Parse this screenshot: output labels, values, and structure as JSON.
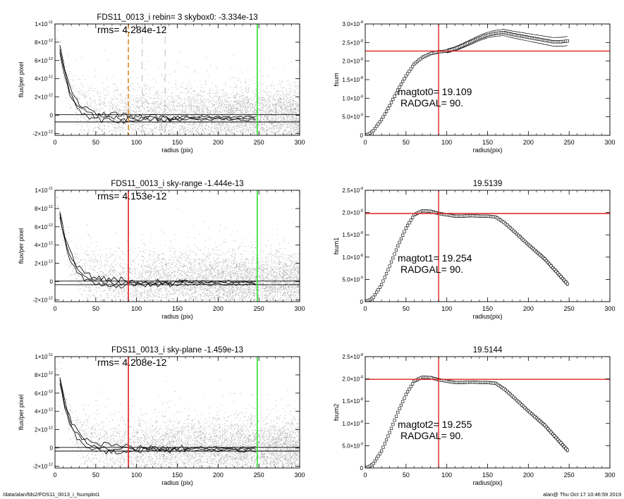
{
  "footer": {
    "path": "/data/alan/fds2/FDS11_0013_i_fsumplot1",
    "stamp": "alan@  Thu Oct 17 10:46:59 2019"
  },
  "colors": {
    "points": "#a8a8a8",
    "profile": "#000000",
    "red": "#e02020",
    "green": "#2adf2a",
    "orange": "#e08a1e",
    "grey_dash": "#b0b0b0"
  },
  "chart_data": [
    {
      "type": "scatter",
      "title": "FDS11_0013_i rebin= 3    skybox0: -3.334e-13",
      "annotation": "rms= 4.284e-12",
      "xlabel": "radius (pix)",
      "ylabel": "flux/per pixel",
      "xlim": [
        0,
        300
      ],
      "ylim": [
        -2.2e-12,
        1e-11
      ],
      "xticks": [
        "0",
        "50",
        "100",
        "150",
        "200",
        "250",
        "300"
      ],
      "yticks": [
        {
          "v": -2e-12,
          "mant": "-2×10",
          "exp": "-12"
        },
        {
          "v": 0,
          "mant": "0",
          "exp": ""
        },
        {
          "v": 2e-12,
          "mant": "2×10",
          "exp": "-12"
        },
        {
          "v": 4e-12,
          "mant": "4×10",
          "exp": "-12"
        },
        {
          "v": 6e-12,
          "mant": "6×10",
          "exp": "-12"
        },
        {
          "v": 8e-12,
          "mant": "8×10",
          "exp": "-12"
        },
        {
          "v": 1e-11,
          "mant": "1×10",
          "exp": "-11"
        }
      ],
      "profile_end": 248,
      "sky_level": -3.334e-13,
      "sky_band": 4e-13,
      "vlines": [
        {
          "x": 90,
          "color": "#e08a1e",
          "style": "dash"
        },
        {
          "x": 107,
          "color": "#b0b0b0",
          "style": "dash"
        },
        {
          "x": 135,
          "color": "#b0b0b0",
          "style": "dash"
        },
        {
          "x": 248,
          "color": "#2adf2a",
          "style": "solid"
        }
      ],
      "seed": 11
    },
    {
      "type": "line",
      "title": "",
      "annotation": [
        "magtot0=  19.109",
        "RADGAL=     90."
      ],
      "xlabel": "radius(pix)",
      "ylabel": "fsum",
      "xlim": [
        0,
        300
      ],
      "ylim": [
        0,
        3e-08
      ],
      "xticks": [
        "0",
        "50",
        "100",
        "150",
        "200",
        "250",
        "300"
      ],
      "yticks": [
        {
          "v": 0,
          "mant": "0",
          "exp": ""
        },
        {
          "v": 5e-09,
          "mant": "5.0×10",
          "exp": "-9"
        },
        {
          "v": 1e-08,
          "mant": "1.0×10",
          "exp": "-8"
        },
        {
          "v": 1.5e-08,
          "mant": "1.5×10",
          "exp": "-8"
        },
        {
          "v": 2e-08,
          "mant": "2.0×10",
          "exp": "-8"
        },
        {
          "v": 2.5e-08,
          "mant": "2.5×10",
          "exp": "-8"
        },
        {
          "v": 3e-08,
          "mant": "3.0×10",
          "exp": "-8"
        }
      ],
      "curve": [
        [
          0,
          0
        ],
        [
          5,
          4e-10
        ],
        [
          10,
          1.3e-09
        ],
        [
          20,
          4.2e-09
        ],
        [
          30,
          8e-09
        ],
        [
          40,
          1.22e-08
        ],
        [
          50,
          1.6e-08
        ],
        [
          60,
          1.92e-08
        ],
        [
          70,
          2.1e-08
        ],
        [
          80,
          2.2e-08
        ],
        [
          90,
          2.25e-08
        ],
        [
          100,
          2.27e-08
        ],
        [
          110,
          2.33e-08
        ],
        [
          120,
          2.42e-08
        ],
        [
          130,
          2.52e-08
        ],
        [
          140,
          2.62e-08
        ],
        [
          150,
          2.7e-08
        ],
        [
          160,
          2.75e-08
        ],
        [
          170,
          2.77e-08
        ],
        [
          180,
          2.72e-08
        ],
        [
          190,
          2.68e-08
        ],
        [
          200,
          2.64e-08
        ],
        [
          210,
          2.6e-08
        ],
        [
          220,
          2.56e-08
        ],
        [
          230,
          2.52e-08
        ],
        [
          240,
          2.52e-08
        ],
        [
          248,
          2.54e-08
        ]
      ],
      "envelope": 1e-09,
      "env_start": 100,
      "hline": 2.27e-08,
      "vline": 90
    },
    {
      "type": "scatter",
      "title": "FDS11_0013_i sky-range -1.444e-13",
      "annotation": "rms= 4.153e-12",
      "xlabel": "radius (pix)",
      "ylabel": "flux/per pixel",
      "xlim": [
        0,
        300
      ],
      "ylim": [
        -2.2e-12,
        1e-11
      ],
      "xticks": [
        "0",
        "50",
        "100",
        "150",
        "200",
        "250",
        "300"
      ],
      "yticks": [
        {
          "v": -2e-12,
          "mant": "-2×10",
          "exp": "-12"
        },
        {
          "v": 0,
          "mant": "0",
          "exp": ""
        },
        {
          "v": 2e-12,
          "mant": "2×10",
          "exp": "-12"
        },
        {
          "v": 4e-12,
          "mant": "4×10",
          "exp": "-12"
        },
        {
          "v": 6e-12,
          "mant": "6×10",
          "exp": "-12"
        },
        {
          "v": 8e-12,
          "mant": "8×10",
          "exp": "-12"
        },
        {
          "v": 1e-11,
          "mant": "1×10",
          "exp": "-11"
        }
      ],
      "profile_end": 248,
      "sky_level": -1.444e-13,
      "sky_band": 2e-13,
      "vlines": [
        {
          "x": 90,
          "color": "#e02020",
          "style": "solid"
        },
        {
          "x": 248,
          "color": "#2adf2a",
          "style": "solid"
        }
      ],
      "seed": 23
    },
    {
      "type": "line",
      "title": "19.5139",
      "annotation": [
        "magtot1=  19.254",
        "RADGAL=     90."
      ],
      "xlabel": "radius(pix)",
      "ylabel": "fsum1",
      "xlim": [
        0,
        300
      ],
      "ylim": [
        0,
        2.5e-08
      ],
      "xticks": [
        "0",
        "50",
        "100",
        "150",
        "200",
        "250",
        "300"
      ],
      "yticks": [
        {
          "v": 0,
          "mant": "0",
          "exp": ""
        },
        {
          "v": 5e-09,
          "mant": "5.0×10",
          "exp": "-9"
        },
        {
          "v": 1e-08,
          "mant": "1.0×10",
          "exp": "-8"
        },
        {
          "v": 1.5e-08,
          "mant": "1.5×10",
          "exp": "-8"
        },
        {
          "v": 2e-08,
          "mant": "2.0×10",
          "exp": "-8"
        },
        {
          "v": 2.5e-08,
          "mant": "2.5×10",
          "exp": "-8"
        }
      ],
      "curve": [
        [
          0,
          0
        ],
        [
          5,
          3e-10
        ],
        [
          10,
          1e-09
        ],
        [
          20,
          3.8e-09
        ],
        [
          30,
          8e-09
        ],
        [
          40,
          1.25e-08
        ],
        [
          50,
          1.65e-08
        ],
        [
          60,
          1.95e-08
        ],
        [
          70,
          2.04e-08
        ],
        [
          80,
          2.03e-08
        ],
        [
          90,
          1.98e-08
        ],
        [
          100,
          1.95e-08
        ],
        [
          110,
          1.92e-08
        ],
        [
          120,
          1.92e-08
        ],
        [
          130,
          1.93e-08
        ],
        [
          140,
          1.92e-08
        ],
        [
          150,
          1.92e-08
        ],
        [
          160,
          1.9e-08
        ],
        [
          170,
          1.78e-08
        ],
        [
          180,
          1.62e-08
        ],
        [
          190,
          1.45e-08
        ],
        [
          200,
          1.28e-08
        ],
        [
          210,
          1.12e-08
        ],
        [
          220,
          9.6e-09
        ],
        [
          230,
          7.6e-09
        ],
        [
          240,
          5.6e-09
        ],
        [
          248,
          4e-09
        ]
      ],
      "envelope": 5e-10,
      "env_start": 160,
      "hline": 1.98e-08,
      "vline": 90
    },
    {
      "type": "scatter",
      "title": "FDS11_0013_i sky-plane -1.459e-13",
      "annotation": "rms= 4.208e-12",
      "xlabel": "radius (pix)",
      "ylabel": "flux/per pixel",
      "xlim": [
        0,
        300
      ],
      "ylim": [
        -2.2e-12,
        1e-11
      ],
      "xticks": [
        "0",
        "50",
        "100",
        "150",
        "200",
        "250",
        "300"
      ],
      "yticks": [
        {
          "v": -2e-12,
          "mant": "-2×10",
          "exp": "-12"
        },
        {
          "v": 0,
          "mant": "0",
          "exp": ""
        },
        {
          "v": 2e-12,
          "mant": "2×10",
          "exp": "-12"
        },
        {
          "v": 4e-12,
          "mant": "4×10",
          "exp": "-12"
        },
        {
          "v": 6e-12,
          "mant": "6×10",
          "exp": "-12"
        },
        {
          "v": 8e-12,
          "mant": "8×10",
          "exp": "-12"
        },
        {
          "v": 1e-11,
          "mant": "1×10",
          "exp": "-11"
        }
      ],
      "profile_end": 248,
      "sky_level": -1.459e-13,
      "sky_band": 2e-13,
      "vlines": [
        {
          "x": 90,
          "color": "#e02020",
          "style": "solid"
        },
        {
          "x": 248,
          "color": "#2adf2a",
          "style": "solid"
        }
      ],
      "seed": 37
    },
    {
      "type": "line",
      "title": "19.5144",
      "annotation": [
        "magtot2=  19.255",
        "RADGAL=     90."
      ],
      "xlabel": "radius(pix)",
      "ylabel": "fsum2",
      "xlim": [
        0,
        300
      ],
      "ylim": [
        0,
        2.5e-08
      ],
      "xticks": [
        "0",
        "50",
        "100",
        "150",
        "200",
        "250",
        "300"
      ],
      "yticks": [
        {
          "v": 0,
          "mant": "0",
          "exp": ""
        },
        {
          "v": 5e-09,
          "mant": "5.0×10",
          "exp": "-9"
        },
        {
          "v": 1e-08,
          "mant": "1.0×10",
          "exp": "-8"
        },
        {
          "v": 1.5e-08,
          "mant": "1.5×10",
          "exp": "-8"
        },
        {
          "v": 2e-08,
          "mant": "2.0×10",
          "exp": "-8"
        },
        {
          "v": 2.5e-08,
          "mant": "2.5×10",
          "exp": "-8"
        }
      ],
      "curve": [
        [
          0,
          0
        ],
        [
          5,
          3e-10
        ],
        [
          10,
          1e-09
        ],
        [
          20,
          3.8e-09
        ],
        [
          30,
          8e-09
        ],
        [
          40,
          1.25e-08
        ],
        [
          50,
          1.65e-08
        ],
        [
          60,
          1.95e-08
        ],
        [
          70,
          2.04e-08
        ],
        [
          80,
          2.03e-08
        ],
        [
          90,
          1.98e-08
        ],
        [
          100,
          1.95e-08
        ],
        [
          110,
          1.92e-08
        ],
        [
          120,
          1.92e-08
        ],
        [
          130,
          1.93e-08
        ],
        [
          140,
          1.92e-08
        ],
        [
          150,
          1.92e-08
        ],
        [
          160,
          1.9e-08
        ],
        [
          170,
          1.78e-08
        ],
        [
          180,
          1.62e-08
        ],
        [
          190,
          1.45e-08
        ],
        [
          200,
          1.28e-08
        ],
        [
          210,
          1.12e-08
        ],
        [
          220,
          9.6e-09
        ],
        [
          230,
          7.6e-09
        ],
        [
          240,
          5.6e-09
        ],
        [
          248,
          4e-09
        ]
      ],
      "envelope": 5e-10,
      "env_start": 160,
      "hline": 1.99e-08,
      "vline": 90
    }
  ]
}
